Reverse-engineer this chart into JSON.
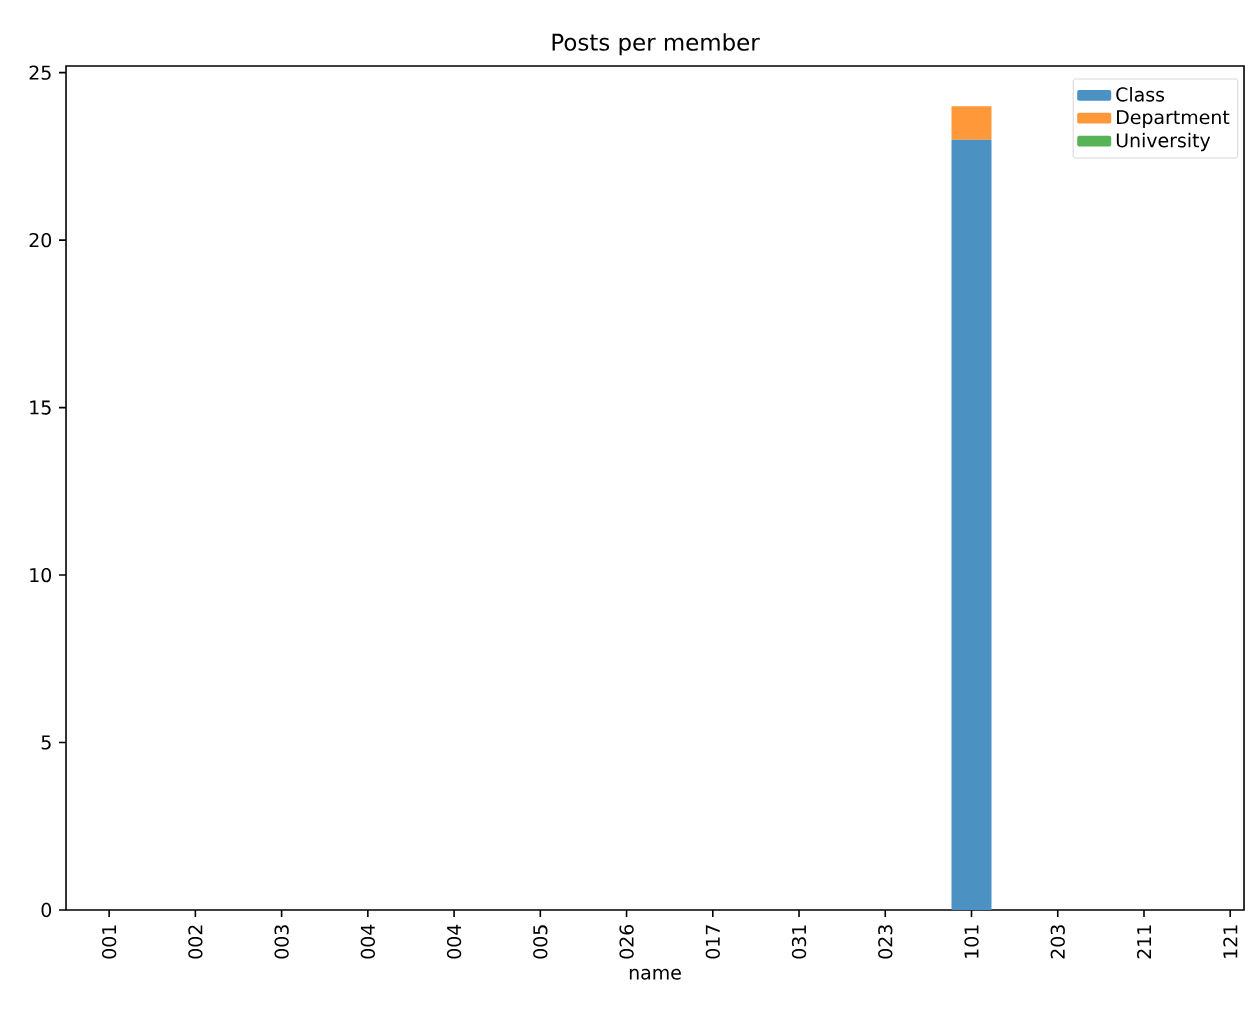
{
  "chart_data": {
    "type": "bar",
    "title": "Posts per member",
    "xlabel": "name",
    "categories": [
      "001",
      "002",
      "003",
      "004",
      "004",
      "005",
      "026",
      "017",
      "031",
      "023",
      "101",
      "203",
      "211",
      "121"
    ],
    "series": [
      {
        "name": "Class",
        "color": "#4b92c3",
        "values": [
          0,
          0,
          0,
          0,
          0,
          0,
          0,
          0,
          0,
          0,
          23,
          0,
          0,
          0
        ]
      },
      {
        "name": "Department",
        "color": "#ff9838",
        "values": [
          0,
          0,
          0,
          0,
          0,
          0,
          0,
          0,
          0,
          0,
          1,
          0,
          0,
          0
        ]
      },
      {
        "name": "University",
        "color": "#56b356",
        "values": [
          0,
          0,
          0,
          0,
          0,
          0,
          0,
          0,
          0,
          0,
          0,
          0,
          0,
          0
        ]
      }
    ],
    "stacked": true,
    "ylim": [
      0,
      25.2
    ],
    "yticks": [
      0,
      5,
      10,
      15,
      20,
      25
    ],
    "legend": "top right",
    "grid": false
  }
}
